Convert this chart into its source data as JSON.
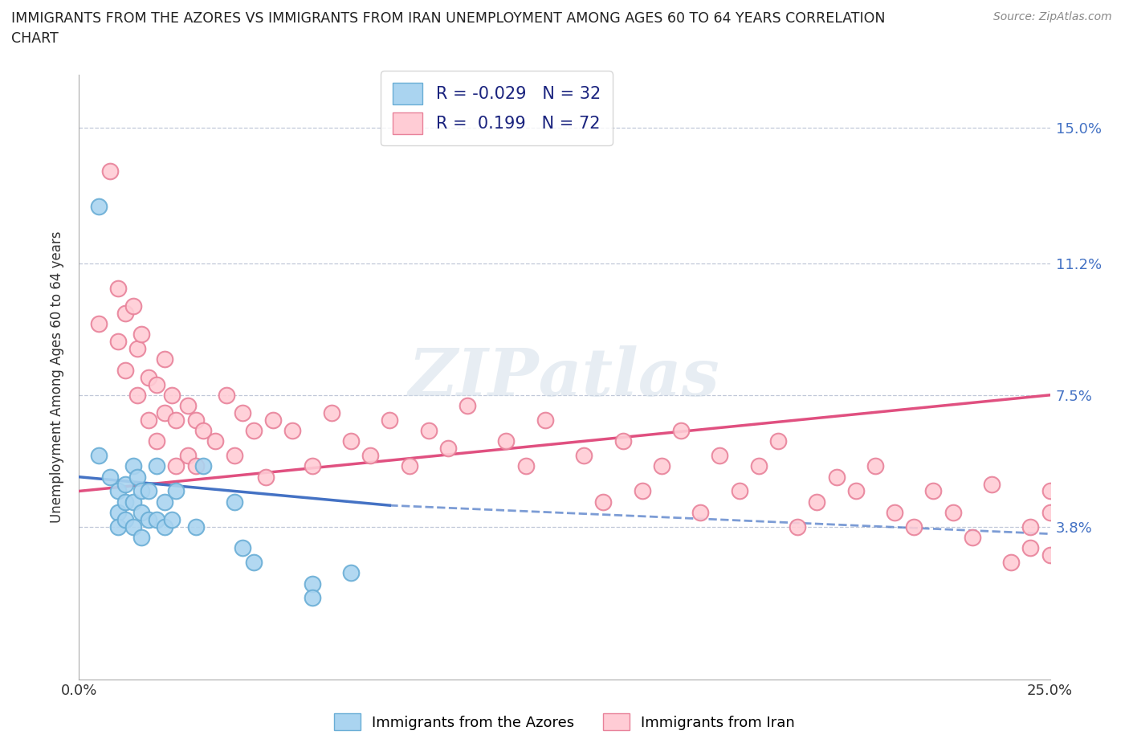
{
  "title_line1": "IMMIGRANTS FROM THE AZORES VS IMMIGRANTS FROM IRAN UNEMPLOYMENT AMONG AGES 60 TO 64 YEARS CORRELATION",
  "title_line2": "CHART",
  "source_text": "Source: ZipAtlas.com",
  "ylabel": "Unemployment Among Ages 60 to 64 years",
  "xlim": [
    0.0,
    0.25
  ],
  "ylim": [
    -0.005,
    0.165
  ],
  "ytick_positions": [
    0.038,
    0.075,
    0.112,
    0.15
  ],
  "ytick_labels": [
    "3.8%",
    "7.5%",
    "11.2%",
    "15.0%"
  ],
  "azores_color": "#aad4f0",
  "azores_edge": "#6aaed6",
  "iran_color": "#ffccd5",
  "iran_edge": "#e8829a",
  "azores_R": -0.029,
  "azores_N": 32,
  "iran_R": 0.199,
  "iran_N": 72,
  "trend_azores_color": "#4472c4",
  "trend_iran_color": "#e05080",
  "legend_color": "#1a237e",
  "azores_x": [
    0.005,
    0.005,
    0.008,
    0.01,
    0.01,
    0.01,
    0.012,
    0.012,
    0.012,
    0.014,
    0.014,
    0.014,
    0.015,
    0.016,
    0.016,
    0.016,
    0.018,
    0.018,
    0.02,
    0.02,
    0.022,
    0.022,
    0.024,
    0.025,
    0.03,
    0.032,
    0.04,
    0.042,
    0.045,
    0.06,
    0.06,
    0.07
  ],
  "azores_y": [
    0.128,
    0.058,
    0.052,
    0.048,
    0.042,
    0.038,
    0.05,
    0.045,
    0.04,
    0.055,
    0.045,
    0.038,
    0.052,
    0.048,
    0.042,
    0.035,
    0.048,
    0.04,
    0.055,
    0.04,
    0.045,
    0.038,
    0.04,
    0.048,
    0.038,
    0.055,
    0.045,
    0.032,
    0.028,
    0.022,
    0.018,
    0.025
  ],
  "iran_x": [
    0.005,
    0.008,
    0.01,
    0.01,
    0.012,
    0.012,
    0.014,
    0.015,
    0.015,
    0.016,
    0.018,
    0.018,
    0.02,
    0.02,
    0.022,
    0.022,
    0.024,
    0.025,
    0.025,
    0.028,
    0.028,
    0.03,
    0.03,
    0.032,
    0.035,
    0.038,
    0.04,
    0.042,
    0.045,
    0.048,
    0.05,
    0.055,
    0.06,
    0.065,
    0.07,
    0.075,
    0.08,
    0.085,
    0.09,
    0.095,
    0.1,
    0.11,
    0.115,
    0.12,
    0.13,
    0.135,
    0.14,
    0.145,
    0.15,
    0.155,
    0.16,
    0.165,
    0.17,
    0.175,
    0.18,
    0.185,
    0.19,
    0.195,
    0.2,
    0.205,
    0.21,
    0.215,
    0.22,
    0.225,
    0.23,
    0.235,
    0.24,
    0.245,
    0.245,
    0.25,
    0.25,
    0.25
  ],
  "iran_y": [
    0.095,
    0.138,
    0.105,
    0.09,
    0.098,
    0.082,
    0.1,
    0.088,
    0.075,
    0.092,
    0.08,
    0.068,
    0.078,
    0.062,
    0.085,
    0.07,
    0.075,
    0.068,
    0.055,
    0.072,
    0.058,
    0.068,
    0.055,
    0.065,
    0.062,
    0.075,
    0.058,
    0.07,
    0.065,
    0.052,
    0.068,
    0.065,
    0.055,
    0.07,
    0.062,
    0.058,
    0.068,
    0.055,
    0.065,
    0.06,
    0.072,
    0.062,
    0.055,
    0.068,
    0.058,
    0.045,
    0.062,
    0.048,
    0.055,
    0.065,
    0.042,
    0.058,
    0.048,
    0.055,
    0.062,
    0.038,
    0.045,
    0.052,
    0.048,
    0.055,
    0.042,
    0.038,
    0.048,
    0.042,
    0.035,
    0.05,
    0.028,
    0.038,
    0.032,
    0.042,
    0.048,
    0.03
  ],
  "trend_azores_x0": 0.0,
  "trend_azores_y0": 0.052,
  "trend_azores_x1": 0.08,
  "trend_azores_y1": 0.044,
  "trend_azores_dash_x0": 0.08,
  "trend_azores_dash_y0": 0.044,
  "trend_azores_dash_x1": 0.25,
  "trend_azores_dash_y1": 0.036,
  "trend_iran_x0": 0.0,
  "trend_iran_y0": 0.048,
  "trend_iran_x1": 0.25,
  "trend_iran_y1": 0.075
}
